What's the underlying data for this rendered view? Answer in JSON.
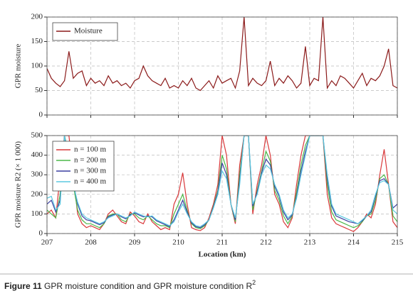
{
  "chart_data": [
    {
      "type": "line",
      "ylabel": "GPR moisture",
      "x": [
        207,
        207.1,
        207.2,
        207.3,
        207.4,
        207.5,
        207.6,
        207.7,
        207.8,
        207.9,
        208,
        208.1,
        208.2,
        208.3,
        208.4,
        208.5,
        208.6,
        208.7,
        208.8,
        208.9,
        209,
        209.1,
        209.2,
        209.3,
        209.4,
        209.5,
        209.6,
        209.7,
        209.8,
        209.9,
        210,
        210.1,
        210.2,
        210.3,
        210.4,
        210.5,
        210.6,
        210.7,
        210.8,
        210.9,
        211,
        211.1,
        211.2,
        211.3,
        211.4,
        211.5,
        211.6,
        211.7,
        211.8,
        211.9,
        212,
        212.1,
        212.2,
        212.3,
        212.4,
        212.5,
        212.6,
        212.7,
        212.8,
        212.9,
        213,
        213.1,
        213.2,
        213.3,
        213.4,
        213.5,
        213.6,
        213.7,
        213.8,
        213.9,
        214,
        214.1,
        214.2,
        214.3,
        214.4,
        214.5,
        214.6,
        214.7,
        214.8,
        214.9,
        215
      ],
      "series": [
        {
          "name": "Moisture",
          "color": "#8b1a1a",
          "values": [
            95,
            75,
            65,
            58,
            70,
            130,
            75,
            85,
            90,
            60,
            75,
            65,
            70,
            60,
            80,
            65,
            70,
            60,
            65,
            55,
            70,
            75,
            100,
            80,
            70,
            65,
            60,
            75,
            55,
            60,
            55,
            70,
            60,
            75,
            55,
            50,
            60,
            70,
            55,
            80,
            65,
            70,
            75,
            55,
            90,
            200,
            60,
            75,
            65,
            60,
            70,
            110,
            60,
            75,
            65,
            80,
            70,
            55,
            65,
            140,
            60,
            75,
            70,
            200,
            55,
            70,
            60,
            80,
            75,
            65,
            55,
            70,
            85,
            60,
            75,
            70,
            80,
            100,
            135,
            60,
            55
          ]
        }
      ],
      "xlim": [
        207,
        215
      ],
      "xticks": [
        207,
        208,
        209,
        210,
        211,
        212,
        213,
        214,
        215
      ],
      "ylim": [
        0,
        200
      ],
      "yticks": [
        0,
        50,
        100,
        150,
        200
      ],
      "grid": true,
      "legend": "upper left"
    },
    {
      "type": "line",
      "xlabel": "Location (km)",
      "ylabel": "GPR moisture R2 (× 1 000)",
      "x": [
        207,
        207.1,
        207.2,
        207.3,
        207.4,
        207.5,
        207.6,
        207.7,
        207.8,
        207.9,
        208,
        208.1,
        208.2,
        208.3,
        208.4,
        208.5,
        208.6,
        208.7,
        208.8,
        208.9,
        209,
        209.1,
        209.2,
        209.3,
        209.4,
        209.5,
        209.6,
        209.7,
        209.8,
        209.9,
        210,
        210.1,
        210.2,
        210.3,
        210.4,
        210.5,
        210.6,
        210.7,
        210.8,
        210.9,
        211,
        211.1,
        211.2,
        211.3,
        211.4,
        211.5,
        211.6,
        211.7,
        211.8,
        211.9,
        212,
        212.1,
        212.2,
        212.3,
        212.4,
        212.5,
        212.6,
        212.7,
        212.8,
        212.9,
        213,
        213.1,
        213.2,
        213.3,
        213.4,
        213.5,
        213.6,
        213.7,
        213.8,
        213.9,
        214,
        214.1,
        214.2,
        214.3,
        214.4,
        214.5,
        214.6,
        214.7,
        214.8,
        214.9,
        215
      ],
      "series": [
        {
          "name": "n = 100 m",
          "color": "#d9383a",
          "values": [
            100,
            120,
            80,
            300,
            500,
            500,
            300,
            100,
            50,
            30,
            40,
            30,
            20,
            50,
            100,
            120,
            90,
            60,
            50,
            110,
            90,
            60,
            50,
            100,
            60,
            40,
            20,
            30,
            20,
            150,
            200,
            310,
            150,
            30,
            20,
            15,
            30,
            80,
            150,
            250,
            500,
            400,
            150,
            50,
            350,
            500,
            500,
            100,
            250,
            350,
            500,
            400,
            200,
            150,
            60,
            30,
            80,
            250,
            400,
            500,
            500,
            500,
            500,
            500,
            200,
            80,
            50,
            40,
            30,
            20,
            10,
            30,
            60,
            100,
            80,
            150,
            300,
            430,
            250,
            60,
            30
          ]
        },
        {
          "name": "n = 200 m",
          "color": "#4cb848",
          "values": [
            120,
            100,
            80,
            200,
            500,
            400,
            250,
            120,
            70,
            50,
            50,
            40,
            30,
            50,
            90,
            100,
            100,
            70,
            60,
            100,
            100,
            80,
            70,
            90,
            70,
            50,
            40,
            40,
            30,
            100,
            150,
            200,
            120,
            50,
            30,
            25,
            40,
            70,
            140,
            220,
            400,
            330,
            150,
            60,
            300,
            500,
            500,
            120,
            220,
            320,
            420,
            370,
            220,
            170,
            90,
            50,
            90,
            210,
            350,
            450,
            500,
            500,
            500,
            500,
            250,
            110,
            70,
            60,
            50,
            40,
            30,
            40,
            60,
            90,
            100,
            170,
            280,
            300,
            250,
            90,
            60
          ]
        },
        {
          "name": "n = 300 m",
          "color": "#3a3fa0",
          "values": [
            150,
            170,
            110,
            170,
            500,
            370,
            260,
            150,
            90,
            70,
            65,
            55,
            45,
            55,
            85,
            95,
            100,
            85,
            75,
            95,
            105,
            95,
            85,
            90,
            85,
            65,
            55,
            45,
            35,
            70,
            120,
            170,
            110,
            55,
            35,
            30,
            45,
            70,
            135,
            210,
            360,
            300,
            150,
            70,
            270,
            500,
            500,
            140,
            210,
            310,
            380,
            350,
            240,
            190,
            110,
            70,
            95,
            190,
            320,
            420,
            500,
            500,
            500,
            500,
            280,
            140,
            90,
            80,
            70,
            60,
            55,
            50,
            65,
            90,
            110,
            190,
            270,
            280,
            250,
            130,
            150
          ]
        },
        {
          "name": "n = 400 m",
          "color": "#5bc8e0",
          "values": [
            180,
            190,
            120,
            150,
            500,
            350,
            250,
            160,
            100,
            80,
            70,
            60,
            50,
            60,
            80,
            90,
            100,
            90,
            80,
            90,
            110,
            100,
            90,
            85,
            90,
            70,
            60,
            50,
            40,
            60,
            110,
            150,
            100,
            60,
            40,
            35,
            50,
            70,
            130,
            200,
            320,
            280,
            150,
            80,
            250,
            500,
            500,
            150,
            200,
            300,
            350,
            330,
            250,
            200,
            120,
            80,
            100,
            180,
            300,
            400,
            500,
            500,
            500,
            500,
            300,
            150,
            100,
            90,
            80,
            70,
            60,
            50,
            70,
            90,
            120,
            200,
            260,
            270,
            250,
            120,
            100
          ]
        }
      ],
      "xlim": [
        207,
        215
      ],
      "xticks": [
        207,
        208,
        209,
        210,
        211,
        212,
        213,
        214,
        215
      ],
      "ylim": [
        0,
        500
      ],
      "yticks": [
        0,
        100,
        200,
        300,
        400,
        500
      ],
      "grid": true,
      "legend": "upper left"
    }
  ],
  "caption": {
    "label": "Figure 11",
    "text": "GPR moisture condition and GPR moisture condition R",
    "sup": "2"
  }
}
